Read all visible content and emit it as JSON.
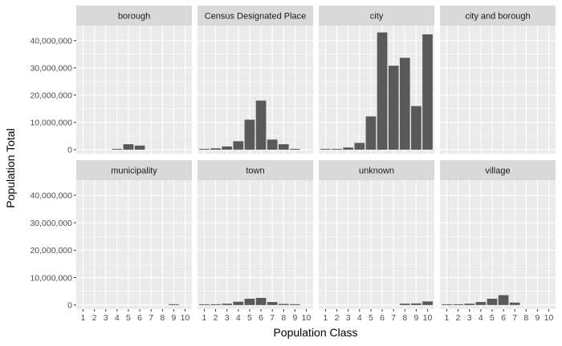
{
  "chart_data": {
    "type": "bar",
    "layout": "facet-grid",
    "xlabel": "Population Class",
    "ylabel": "Population Total",
    "categories": [
      "1",
      "2",
      "3",
      "4",
      "5",
      "6",
      "7",
      "8",
      "9",
      "10"
    ],
    "ylim": [
      -1500000,
      45500000
    ],
    "yticks": [
      0,
      10000000,
      20000000,
      30000000,
      40000000
    ],
    "ytick_labels": [
      "0",
      "10,000,000",
      "20,000,000",
      "30,000,000",
      "40,000,000"
    ],
    "grid": true,
    "colors": {
      "bar": "#595959",
      "panel_bg": "#ebebeb",
      "strip_bg": "#d9d9d9",
      "grid": "#ffffff"
    },
    "panels": [
      {
        "name": "borough",
        "values": [
          0,
          0,
          0,
          100000,
          2000000,
          1500000,
          0,
          0,
          0,
          0
        ]
      },
      {
        "name": "Census Designated Place",
        "values": [
          150000,
          500000,
          1200000,
          3100000,
          11000000,
          18000000,
          3700000,
          2000000,
          300000,
          0
        ]
      },
      {
        "name": "city",
        "values": [
          50000,
          300000,
          800000,
          2500000,
          12200000,
          43000000,
          30800000,
          33700000,
          16000000,
          42300000
        ]
      },
      {
        "name": "city and borough",
        "values": [
          0,
          0,
          0,
          0,
          0,
          0,
          0,
          0,
          0,
          0
        ]
      },
      {
        "name": "municipality",
        "values": [
          0,
          0,
          0,
          0,
          0,
          0,
          0,
          0,
          300000,
          0
        ]
      },
      {
        "name": "town",
        "values": [
          50000,
          200000,
          500000,
          1200000,
          2300000,
          2600000,
          1100000,
          400000,
          300000,
          0
        ]
      },
      {
        "name": "unknown",
        "values": [
          0,
          0,
          0,
          0,
          0,
          0,
          0,
          500000,
          600000,
          1300000
        ]
      },
      {
        "name": "village",
        "values": [
          50000,
          200000,
          500000,
          1100000,
          2300000,
          3600000,
          900000,
          0,
          0,
          0
        ]
      }
    ]
  }
}
